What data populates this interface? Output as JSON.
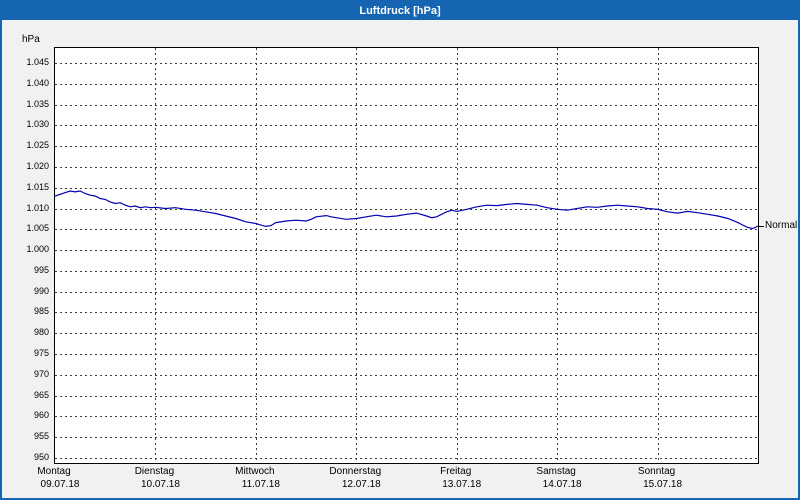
{
  "window": {
    "title": "Luftdruck [hPa]"
  },
  "chart_data": {
    "type": "line",
    "title": "Luftdruck [hPa]",
    "xlabel": "",
    "ylabel": "hPa",
    "ylim": [
      948.8,
      1048.6
    ],
    "xlim": [
      0,
      7
    ],
    "grid": true,
    "legend_position": "none",
    "line_color": "#0000b4",
    "grid_color": "#3c3c3c",
    "y_ticks": [
      {
        "value": 1045,
        "label": "1.045"
      },
      {
        "value": 1040,
        "label": "1.040"
      },
      {
        "value": 1035,
        "label": "1.035"
      },
      {
        "value": 1030,
        "label": "1.030"
      },
      {
        "value": 1025,
        "label": "1.025"
      },
      {
        "value": 1020,
        "label": "1.020"
      },
      {
        "value": 1015,
        "label": "1.015"
      },
      {
        "value": 1010,
        "label": "1.010"
      },
      {
        "value": 1005,
        "label": "1.005"
      },
      {
        "value": 1000,
        "label": "1.000"
      },
      {
        "value": 995,
        "label": "995"
      },
      {
        "value": 990,
        "label": "990"
      },
      {
        "value": 985,
        "label": "985"
      },
      {
        "value": 980,
        "label": "980"
      },
      {
        "value": 975,
        "label": "975"
      },
      {
        "value": 970,
        "label": "970"
      },
      {
        "value": 965,
        "label": "965"
      },
      {
        "value": 960,
        "label": "960"
      },
      {
        "value": 955,
        "label": "955"
      },
      {
        "value": 950,
        "label": "950"
      }
    ],
    "x_days": [
      {
        "day": "Montag",
        "date": "09.07.18"
      },
      {
        "day": "Dienstag",
        "date": "10.07.18"
      },
      {
        "day": "Mittwoch",
        "date": "11.07.18"
      },
      {
        "day": "Donnerstag",
        "date": "12.07.18"
      },
      {
        "day": "Freitag",
        "date": "13.07.18"
      },
      {
        "day": "Samstag",
        "date": "14.07.18"
      },
      {
        "day": "Sonntag",
        "date": "15.07.18"
      }
    ],
    "annotation": {
      "label": "Normal",
      "value": 1005.5
    },
    "series": [
      {
        "name": "Luftdruck",
        "x": [
          0.0,
          0.1,
          0.15,
          0.2,
          0.25,
          0.3,
          0.35,
          0.4,
          0.45,
          0.5,
          0.55,
          0.6,
          0.65,
          0.7,
          0.75,
          0.8,
          0.85,
          0.9,
          0.95,
          1.0,
          1.1,
          1.2,
          1.3,
          1.4,
          1.5,
          1.6,
          1.7,
          1.8,
          1.9,
          2.0,
          2.05,
          2.1,
          2.15,
          2.2,
          2.3,
          2.4,
          2.5,
          2.55,
          2.6,
          2.7,
          2.75,
          2.8,
          2.9,
          3.0,
          3.1,
          3.2,
          3.3,
          3.4,
          3.5,
          3.6,
          3.7,
          3.75,
          3.8,
          3.9,
          3.95,
          4.0,
          4.1,
          4.2,
          4.3,
          4.4,
          4.5,
          4.6,
          4.7,
          4.8,
          4.9,
          5.0,
          5.1,
          5.2,
          5.3,
          5.4,
          5.5,
          5.6,
          5.7,
          5.8,
          5.9,
          6.0,
          6.1,
          6.2,
          6.3,
          6.4,
          6.5,
          6.6,
          6.7,
          6.8,
          6.85,
          6.9,
          6.95,
          7.0
        ],
        "values": [
          1013.0,
          1013.8,
          1014.2,
          1014.0,
          1014.2,
          1013.6,
          1013.2,
          1013.0,
          1012.4,
          1012.2,
          1011.6,
          1011.2,
          1011.4,
          1010.8,
          1010.4,
          1010.6,
          1010.2,
          1010.4,
          1010.2,
          1010.3,
          1010.0,
          1010.2,
          1009.8,
          1009.6,
          1009.2,
          1008.8,
          1008.2,
          1007.6,
          1006.8,
          1006.4,
          1006.0,
          1005.7,
          1005.9,
          1006.6,
          1007.0,
          1007.2,
          1007.0,
          1007.4,
          1008.0,
          1008.3,
          1008.0,
          1007.8,
          1007.4,
          1007.6,
          1008.0,
          1008.4,
          1008.0,
          1008.2,
          1008.6,
          1008.9,
          1008.2,
          1007.8,
          1008.0,
          1009.2,
          1009.6,
          1009.3,
          1009.8,
          1010.4,
          1010.8,
          1010.7,
          1011.0,
          1011.2,
          1011.0,
          1010.8,
          1010.2,
          1009.8,
          1009.6,
          1010.0,
          1010.4,
          1010.3,
          1010.6,
          1010.8,
          1010.6,
          1010.4,
          1010.0,
          1009.8,
          1009.2,
          1008.9,
          1009.3,
          1009.0,
          1008.6,
          1008.2,
          1007.6,
          1006.6,
          1006.0,
          1005.4,
          1005.2,
          1005.8
        ]
      }
    ]
  }
}
